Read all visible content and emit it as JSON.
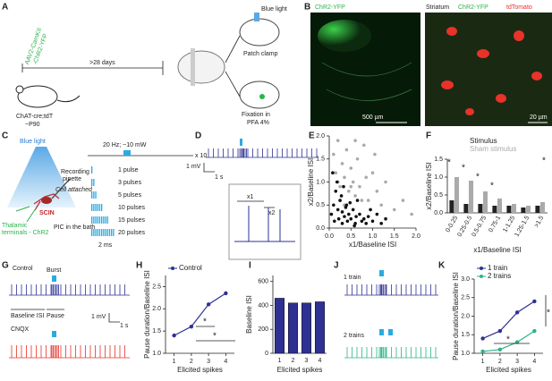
{
  "panels": {
    "A": {
      "letter": "A",
      "virus1": "AAV2-CamKII",
      "virus2": "-ChR2-YFP",
      "days": ">28 days",
      "mouse": "ChAT-cre;tdT",
      "age": "~P90",
      "light": "Blue light",
      "patch": "Patch clamp",
      "fix1": "Fixation in",
      "fix2": "PFA 4%"
    },
    "B": {
      "letter": "B",
      "label1": "ChR2-YFP",
      "scale1": "500 µm",
      "region": "Striatum",
      "label2": "ChR2-YFP",
      "label3": "tdTomato",
      "scale2": "20 µm"
    },
    "C": {
      "letter": "C",
      "light": "Blue light",
      "pipette1": "Recording",
      "pipette2": "pipette",
      "attached": "Cell attached",
      "cell": "SCIN",
      "bath": "PIC in the bath",
      "terminals1": "Thalamic",
      "terminals2": "terminals - ChR2",
      "protocol": "20 Hz; ~10 mW",
      "repeat": "x 10",
      "pulses": [
        "1 pulse",
        "3 pulses",
        "5 pulses",
        "10 pulses",
        "15 pulses",
        "20 pulses"
      ],
      "width": "2 ms"
    },
    "D": {
      "letter": "D",
      "mv": "1 mV",
      "s": "1 s",
      "x1": "x1",
      "x2": "x2"
    },
    "E": {
      "letter": "E"
    },
    "F": {
      "letter": "F"
    },
    "G": {
      "letter": "G",
      "control": "Control",
      "burst": "Burst",
      "isi": "Baseline ISI",
      "pause": "Pause",
      "mv": "1 mV",
      "s": "1 s",
      "cnqx": "CNQX"
    },
    "H": {
      "letter": "H"
    },
    "I": {
      "letter": "I"
    },
    "J": {
      "letter": "J",
      "one": "1 train",
      "two": "2 trains"
    },
    "K": {
      "letter": "K"
    }
  },
  "chart_data": [
    {
      "type": "scatter",
      "xlabel": "x1/Baseline ISI",
      "ylabel": "x2/Baseline ISI",
      "xlim": [
        0,
        2
      ],
      "ylim": [
        0,
        2
      ],
      "xticks": [
        {
          "value": 0,
          "label": "0.0"
        },
        {
          "value": 0.5,
          "label": "0.5"
        },
        {
          "value": 1,
          "label": "1.0"
        },
        {
          "value": 1.5,
          "label": "1.5"
        },
        {
          "value": 2,
          "label": "2.0"
        }
      ],
      "yticks": [
        {
          "value": 0,
          "label": "0.0"
        },
        {
          "value": 0.5,
          "label": "0.5"
        },
        {
          "value": 1,
          "label": "1.0"
        },
        {
          "value": 1.5,
          "label": "1.5"
        },
        {
          "value": 2,
          "label": "2.0"
        }
      ],
      "series": [
        {
          "color": "#aaaaaa",
          "x": [
            0.1,
            0.15,
            0.2,
            0.25,
            0.3,
            0.35,
            0.4,
            0.45,
            0.5,
            0.55,
            0.6,
            0.65,
            0.7,
            0.8,
            0.9,
            1.0,
            1.1,
            1.2,
            1.3,
            1.5,
            1.7,
            1.9,
            0.25,
            0.35,
            0.5,
            0.75,
            0.85,
            1.05,
            0.2,
            0.6
          ],
          "values": [
            1.6,
            1.2,
            1.9,
            0.9,
            1.4,
            1.1,
            1.7,
            0.8,
            1.3,
            1.0,
            0.7,
            1.5,
            0.9,
            1.8,
            0.6,
            1.2,
            0.8,
            0.5,
            1.0,
            0.4,
            0.6,
            0.3,
            0.6,
            0.5,
            0.9,
            0.6,
            1.1,
            1.6,
            1.0,
            1.9
          ]
        },
        {
          "color": "#111111",
          "x": [
            0.05,
            0.1,
            0.12,
            0.15,
            0.2,
            0.22,
            0.25,
            0.3,
            0.3,
            0.35,
            0.4,
            0.42,
            0.45,
            0.5,
            0.55,
            0.6,
            0.62,
            0.7,
            0.75,
            0.8,
            0.85,
            0.9,
            1.0,
            1.1,
            1.2,
            0.18,
            0.28,
            0.38,
            0.48,
            0.58,
            0.08,
            0.33,
            0.65,
            1.3,
            0.95
          ],
          "values": [
            0.3,
            0.5,
            0.15,
            0.8,
            0.4,
            0.2,
            0.6,
            0.1,
            0.35,
            0.25,
            0.5,
            0.15,
            0.3,
            0.2,
            0.4,
            0.1,
            0.25,
            0.3,
            0.15,
            0.2,
            0.1,
            0.25,
            0.15,
            0.3,
            0.1,
            1.0,
            0.7,
            0.45,
            0.55,
            0.05,
            1.2,
            0.9,
            0.6,
            0.2,
            0.4
          ]
        }
      ]
    },
    {
      "type": "bar",
      "xlabel": "x1/Baseline ISI",
      "ylabel": "x2/Baseline ISI",
      "ylim": [
        0,
        1.5
      ],
      "yticks": [
        {
          "value": 0,
          "label": "0.0"
        },
        {
          "value": 0.5,
          "label": "0.5"
        },
        {
          "value": 1,
          "label": "1.0"
        },
        {
          "value": 1.5,
          "label": "1.5"
        }
      ],
      "categories": [
        "0-0.25",
        "0.25-0.5",
        "0.5-0.75",
        "0.75-1",
        "1-1.25",
        "1.25-1.5",
        ">1.5"
      ],
      "series": [
        {
          "name": "Stimulus",
          "color": "#222222",
          "values": [
            0.35,
            0.25,
            0.25,
            0.2,
            0.2,
            0.15,
            0.2
          ]
        },
        {
          "name": "Sham stimulus",
          "color": "#aaaaaa",
          "values": [
            1.0,
            0.9,
            0.6,
            0.4,
            0.25,
            0.2,
            0.3
          ]
        }
      ],
      "annotations": [
        "*",
        "*",
        "*",
        "*",
        "*"
      ]
    },
    {
      "type": "line",
      "xlabel": "Elicited spikes",
      "ylabel": "Pause duration/Baseline ISI",
      "xlim": [
        0.5,
        4.5
      ],
      "xticks": [
        1,
        2,
        3,
        4
      ],
      "x": [
        1,
        2,
        3,
        4
      ],
      "ylim": [
        1,
        2.75
      ],
      "yticks": [
        {
          "value": 1,
          "label": "1.0"
        },
        {
          "value": 1.5,
          "label": "1.5"
        },
        {
          "value": 2,
          "label": "2.0"
        },
        {
          "value": 2.5,
          "label": "2.5"
        }
      ],
      "series": [
        {
          "name": "Control",
          "color": "#2e3192",
          "values": [
            1.4,
            1.6,
            2.1,
            2.35
          ]
        }
      ],
      "annotations": [
        "*",
        "*"
      ]
    },
    {
      "type": "bar",
      "xlabel": "Elicited spikes",
      "ylabel": "Baseline ISI",
      "ylim": [
        0,
        650
      ],
      "yticks": [
        0,
        200,
        400,
        600
      ],
      "categories": [
        "1",
        "2",
        "3",
        "4"
      ],
      "color": "#2e3192",
      "values": [
        460,
        420,
        420,
        430
      ]
    },
    {
      "type": "line",
      "xlabel": "Elicited spikes",
      "ylabel": "Pause duration/Baseline ISI",
      "xlim": [
        0.5,
        4.5
      ],
      "xticks": [
        1,
        2,
        3,
        4
      ],
      "x": [
        1,
        2,
        3,
        4
      ],
      "ylim": [
        1,
        3
      ],
      "yticks": [
        {
          "value": 1,
          "label": "1.0"
        },
        {
          "value": 1.5,
          "label": "1.5"
        },
        {
          "value": 2,
          "label": "2.0"
        },
        {
          "value": 2.5,
          "label": "2.5"
        },
        {
          "value": 3,
          "label": "3.0"
        }
      ],
      "series": [
        {
          "name": "1 train",
          "color": "#2e3192",
          "values": [
            1.4,
            1.6,
            2.1,
            2.4
          ]
        },
        {
          "name": "2 trains",
          "color": "#2bb38a",
          "values": [
            1.05,
            1.1,
            1.3,
            1.6
          ]
        }
      ],
      "annotations": [
        "*",
        "*"
      ]
    }
  ]
}
